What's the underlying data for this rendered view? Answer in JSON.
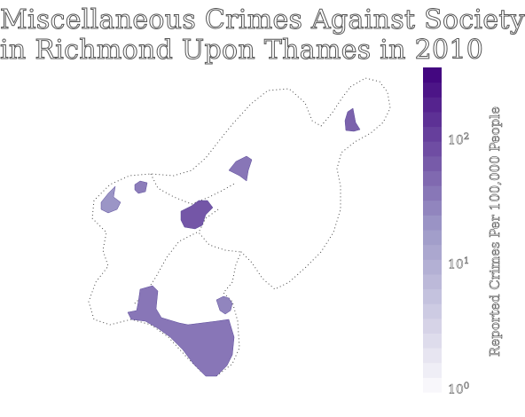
{
  "title": {
    "line1": "Miscellaneous Crimes Against Society",
    "line2": "in Richmond Upon Thames in 2010"
  },
  "colorbar": {
    "label": "Reported Crimes Per 100,000 People",
    "scale": "log",
    "range": [
      1,
      400
    ],
    "ticks": [
      {
        "base": "10",
        "exp": "0",
        "value": 1
      },
      {
        "base": "10",
        "exp": "1",
        "value": 10
      },
      {
        "base": "10",
        "exp": "2",
        "value": 100
      }
    ],
    "color_low": "#fcfbfd",
    "color_high": "#3f007d"
  },
  "colors": {
    "outline": "#444444",
    "region_mid": "#7566ae",
    "region_dark": "#5e48a3",
    "region_light": "#8a7fc0"
  },
  "chart_data": {
    "type": "choropleth",
    "title": "Miscellaneous Crimes Against Society in Richmond Upon Thames in 2010",
    "legend_label": "Reported Crimes Per 100,000 People",
    "regions": [
      {
        "id": "ward-northeast",
        "value": 60
      },
      {
        "id": "ward-centre-north",
        "value": 40
      },
      {
        "id": "ward-west-small",
        "value": 35
      },
      {
        "id": "ward-west-spike",
        "value": 22
      },
      {
        "id": "ward-centre",
        "value": 75
      },
      {
        "id": "ward-south-large",
        "value": 40
      },
      {
        "id": "ward-south-small",
        "value": 30
      }
    ]
  }
}
